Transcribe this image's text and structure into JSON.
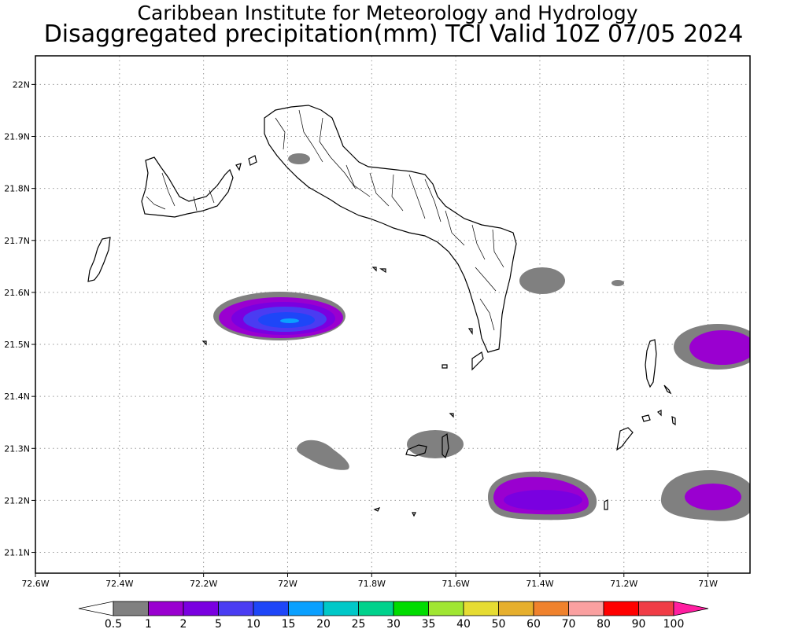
{
  "header": {
    "line1": "Caribbean Institute for Meteorology and Hydrology",
    "line2": "Disaggregated precipitation(mm) TCI Valid 10Z 07/05 2024"
  },
  "axes": {
    "lon_labels": [
      "72.6W",
      "72.4W",
      "72.2W",
      "72W",
      "71.8W",
      "71.6W",
      "71.4W",
      "71.2W",
      "71W"
    ],
    "lon_values": [
      -72.6,
      -72.4,
      -72.2,
      -72.0,
      -71.8,
      -71.6,
      -71.4,
      -71.2,
      -71.0
    ],
    "lat_labels": [
      "22N",
      "21.9N",
      "21.8N",
      "21.7N",
      "21.6N",
      "21.5N",
      "21.4N",
      "21.3N",
      "21.2N",
      "21.1N"
    ],
    "lat_values": [
      22.0,
      21.9,
      21.8,
      21.7,
      21.6,
      21.5,
      21.4,
      21.3,
      21.2,
      21.1
    ],
    "lon_range": [
      -72.6,
      -70.9
    ],
    "lat_range": [
      21.06,
      22.055
    ],
    "grid": "dotted"
  },
  "colorbar": {
    "labels": [
      "0.5",
      "1",
      "2",
      "5",
      "10",
      "15",
      "20",
      "25",
      "30",
      "35",
      "40",
      "50",
      "60",
      "70",
      "80",
      "90",
      "100"
    ],
    "colors": [
      "#808080",
      "#9a00d0",
      "#7a00e0",
      "#4a3cf2",
      "#1e46f8",
      "#0aa0ff",
      "#00c8c8",
      "#00d28c",
      "#00dc00",
      "#a0e632",
      "#e6dc32",
      "#e6af2d",
      "#f0822d",
      "#faa0a0",
      "#ff0000",
      "#f03c46",
      "#ff1ea0"
    ]
  },
  "precip_areas": [
    {
      "name": "center-west-cell",
      "lon": -72.0,
      "lat": 21.555,
      "levels": [
        "1",
        "2",
        "5",
        "10",
        "15"
      ],
      "peak_mm": "15"
    },
    {
      "name": "south-center-cell",
      "lon": -71.4,
      "lat": 21.205,
      "levels": [
        "1",
        "2"
      ],
      "peak_mm": "2"
    },
    {
      "name": "east-upper-cell",
      "lon": -70.99,
      "lat": 21.5,
      "levels": [
        "1"
      ],
      "peak_mm": "1"
    },
    {
      "name": "east-lower-cell",
      "lon": -71.0,
      "lat": 21.21,
      "levels": [
        "1"
      ],
      "peak_mm": "1"
    },
    {
      "name": "grey-east-caicos",
      "lon": -71.43,
      "lat": 21.63,
      "levels": [
        "0.5"
      ],
      "peak_mm": "0.5"
    },
    {
      "name": "grey-south-1",
      "lon": -71.93,
      "lat": 21.29,
      "levels": [
        "0.5"
      ],
      "peak_mm": "0.5"
    },
    {
      "name": "grey-south-2",
      "lon": -71.69,
      "lat": 21.31,
      "levels": [
        "0.5"
      ],
      "peak_mm": "0.5"
    },
    {
      "name": "grey-north",
      "lon": -71.99,
      "lat": 21.87,
      "levels": [
        "0.5"
      ],
      "peak_mm": "0.5"
    },
    {
      "name": "grey-speck",
      "lon": -71.22,
      "lat": 21.62,
      "levels": [
        "0.5"
      ],
      "peak_mm": "0.5"
    }
  ]
}
